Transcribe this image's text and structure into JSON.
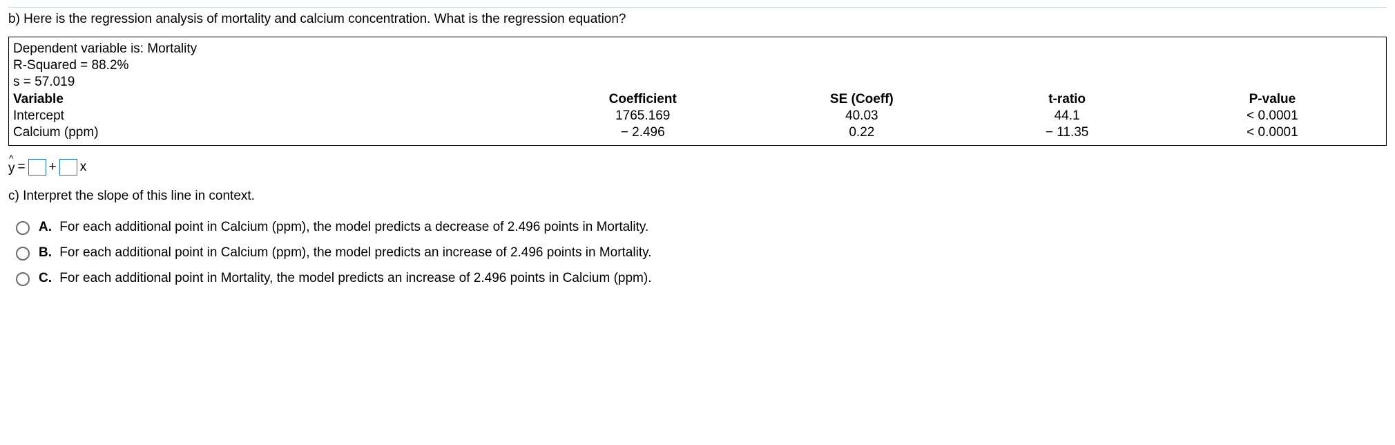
{
  "question_b": "b) Here is the regression analysis of mortality and calcium concentration. What is the regression equation?",
  "regression": {
    "dep_var_line": "Dependent variable is: Mortality",
    "rsq_line": "R-Squared = 88.2%",
    "s_line": "s = 57.019",
    "headers": {
      "variable": "Variable",
      "coef": "Coefficient",
      "se": "SE (Coeff)",
      "t": "t-ratio",
      "p": "P-value"
    },
    "rows": [
      {
        "variable": "Intercept",
        "coef": "1765.169",
        "se": "40.03",
        "t": "44.1",
        "p": "< 0.0001"
      },
      {
        "variable": "Calcium (ppm)",
        "coef": "− 2.496",
        "se": "0.22",
        "t": "− 11.35",
        "p": "< 0.0001"
      }
    ]
  },
  "equation": {
    "y": "y",
    "eq": "=",
    "plus": "+",
    "x": "x"
  },
  "question_c": "c) Interpret the slope of this line in context.",
  "options": {
    "A": {
      "letter": "A.",
      "text": "For each additional point in Calcium (ppm), the model predicts a decrease of 2.496 points in Mortality."
    },
    "B": {
      "letter": "B.",
      "text": "For each additional point in Calcium (ppm), the model predicts an increase of 2.496 points in Mortality."
    },
    "C": {
      "letter": "C.",
      "text": "For each additional point in Mortality, the model predicts an increase of 2.496 points in Calcium (ppm)."
    }
  }
}
